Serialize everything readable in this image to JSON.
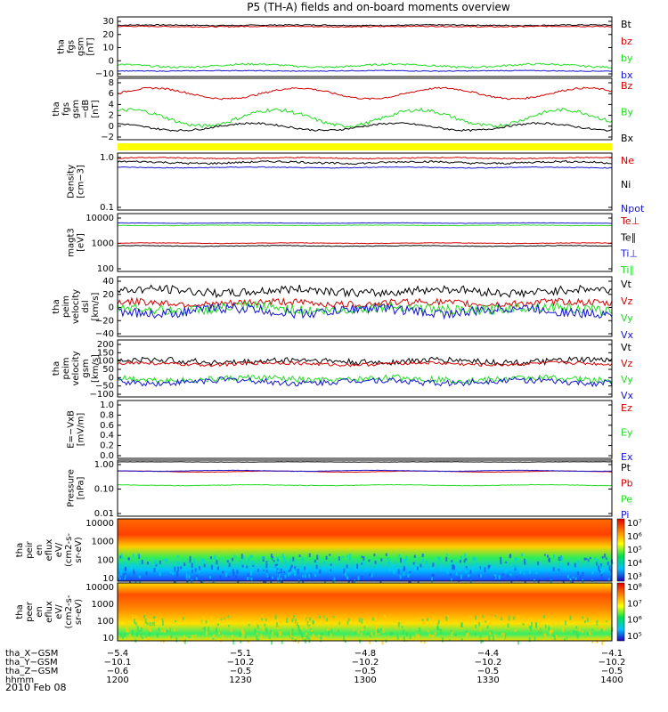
{
  "title": "P5 (TH-A) fields and on-board moments overview",
  "colors": {
    "black": "#000000",
    "red": "#d40000",
    "green": "#22dd22",
    "blue": "#1515d0",
    "yellow": "#ffff00"
  },
  "chart_data": [
    {
      "id": "p1",
      "type": "line",
      "ylabel": [
        "tha",
        "fgs",
        "gsm",
        "[nT]"
      ],
      "yticks": [
        "30",
        "20",
        "10",
        "0",
        "−10"
      ],
      "ylim": [
        -12,
        31
      ],
      "series": [
        {
          "name": "Bt",
          "color": "#000000",
          "level": 26,
          "noise": 0.4,
          "wave": 0.2
        },
        {
          "name": "bz",
          "color": "#d40000",
          "level": 25,
          "noise": 0.4,
          "wave": 0.2
        },
        {
          "name": "by",
          "color": "#22dd22",
          "level": -5,
          "noise": 0.7,
          "wave": 1.2
        },
        {
          "name": "bx",
          "color": "#1515d0",
          "level": -9,
          "noise": 0.3,
          "wave": 0.2
        }
      ]
    },
    {
      "id": "p2",
      "type": "line",
      "ylabel": [
        "tha",
        "fgs",
        "gsm",
        "−dB",
        "[nT]"
      ],
      "yticks": [
        "8",
        "6",
        "4",
        "2",
        "0",
        "−2"
      ],
      "ylim": [
        -3,
        10
      ],
      "series": [
        {
          "name": "Bz",
          "color": "#d40000",
          "level": 7,
          "noise": 0.2,
          "wave": 1.2
        },
        {
          "name": "By",
          "color": "#22dd22",
          "level": 1.5,
          "noise": 0.4,
          "wave": 1.8
        },
        {
          "name": "Bx",
          "color": "#000000",
          "level": -0.5,
          "noise": 0.2,
          "wave": 0.8
        }
      ]
    },
    {
      "id": "p3",
      "type": "line",
      "ylabel": [
        "Density",
        "[cm−3]"
      ],
      "yticks": [
        "1.0",
        "0.1"
      ],
      "ylim": [
        0.1,
        1.0
      ],
      "yscale": "log",
      "series": [
        {
          "name": "Ne",
          "color": "#d40000",
          "level": 0.87,
          "noise": 0.02,
          "wave": 0.02
        },
        {
          "name": "Ni",
          "color": "#000000",
          "level": 0.72,
          "noise": 0.03,
          "wave": 0.03
        },
        {
          "name": "Npot",
          "color": "#1515d0",
          "level": 0.58,
          "noise": 0.01,
          "wave": 0.01
        }
      ]
    },
    {
      "id": "p4",
      "type": "line",
      "ylabel": [
        "magt3",
        "[eV]"
      ],
      "yticks": [
        "10000",
        "1000",
        "100"
      ],
      "ylim": [
        100,
        10000
      ],
      "yscale": "log",
      "series": [
        {
          "name": "Te⊥",
          "color": "#d40000",
          "level": 950,
          "noise": 20,
          "wave": 20
        },
        {
          "name": "Te∥",
          "color": "#000000",
          "level": 750,
          "noise": 20,
          "wave": 20
        },
        {
          "name": "Ti⊥",
          "color": "#1515d0",
          "level": 5200,
          "noise": 80,
          "wave": 80
        },
        {
          "name": "Ti∥",
          "color": "#22dd22",
          "level": 4300,
          "noise": 80,
          "wave": 80
        }
      ]
    },
    {
      "id": "p5",
      "type": "line",
      "ylabel": [
        "tha",
        "peim",
        "velocity",
        "dsl",
        "[km/s]"
      ],
      "yticks": [
        "40",
        "20",
        "0",
        "−20",
        "−40"
      ],
      "ylim": [
        -40,
        40
      ],
      "series": [
        {
          "name": "Vt",
          "color": "#000000",
          "level": 22,
          "noise": 6,
          "wave": 3
        },
        {
          "name": "Vz",
          "color": "#d40000",
          "level": 5,
          "noise": 5,
          "wave": 2
        },
        {
          "name": "Vy",
          "color": "#22dd22",
          "level": -3,
          "noise": 7,
          "wave": 3
        },
        {
          "name": "Vx",
          "color": "#1515d0",
          "level": -6,
          "noise": 7,
          "wave": 4
        }
      ]
    },
    {
      "id": "p6",
      "type": "line",
      "ylabel": [
        "tha",
        "peim",
        "velocity",
        "gsm",
        "[km/s]"
      ],
      "yticks": [
        "200",
        "150",
        "100",
        "50",
        "0",
        "−50",
        "−100"
      ],
      "ylim": [
        -110,
        205
      ],
      "series": [
        {
          "name": "Vt",
          "color": "#000000",
          "level": 90,
          "noise": 18,
          "wave": 8
        },
        {
          "name": "Vz",
          "color": "#d40000",
          "level": 75,
          "noise": 10,
          "wave": 6
        },
        {
          "name": "Vy",
          "color": "#22dd22",
          "level": -15,
          "noise": 18,
          "wave": 8
        },
        {
          "name": "Vx",
          "color": "#1515d0",
          "level": -30,
          "noise": 18,
          "wave": 10
        }
      ]
    },
    {
      "id": "p7",
      "type": "line",
      "ylabel": [
        "E=−VxB",
        "[mV/m]"
      ],
      "yticks": [
        "1.0",
        "0.8",
        "0.6",
        "0.4",
        "0.2",
        "0.0"
      ],
      "ylim": [
        0,
        1
      ],
      "series": [
        {
          "name": "Ez",
          "color": "#d40000"
        },
        {
          "name": "Ey",
          "color": "#22dd22"
        },
        {
          "name": "Ex",
          "color": "#1515d0"
        }
      ]
    },
    {
      "id": "p8",
      "type": "line",
      "ylabel": [
        "Pressure",
        "[nPa]"
      ],
      "yticks": [
        "1.00",
        "0.10",
        "0.01"
      ],
      "ylim": [
        0.01,
        1.0
      ],
      "yscale": "log",
      "series": [
        {
          "name": "Pt",
          "color": "#000000",
          "level": 1.0,
          "noise": 0.01,
          "wave": 0.01
        },
        {
          "name": "Pb",
          "color": "#d40000",
          "level": 0.43,
          "noise": 0.005,
          "wave": 0.02
        },
        {
          "name": "Pe",
          "color": "#22dd22",
          "level": 0.13,
          "noise": 0.003,
          "wave": 0.005
        },
        {
          "name": "Pi",
          "color": "#1515d0",
          "level": 0.46,
          "noise": 0.006,
          "wave": 0.02
        }
      ]
    },
    {
      "id": "p9",
      "type": "heatmap",
      "ylabel": [
        "tha",
        "peir",
        "en",
        "eflux",
        "eV/",
        "(cm2-s-",
        "sr-eV)"
      ],
      "yticks": [
        "10000",
        "1000",
        "100",
        "10"
      ],
      "colorbar": [
        "10⁷",
        "10⁶",
        "10⁵",
        "10⁴",
        "10³"
      ]
    },
    {
      "id": "p10",
      "type": "heatmap",
      "ylabel": [
        "tha",
        "peer",
        "en",
        "eflux",
        "eV/",
        "(cm2-s-",
        "sr-eV)"
      ],
      "yticks": [
        "10000",
        "1000",
        "100",
        "10"
      ],
      "colorbar": [
        "10⁸",
        "10⁷",
        "10⁶",
        "10⁵"
      ]
    }
  ],
  "xaxis": {
    "ticks": [
      {
        "x": "−5.4",
        "y": "−10.1",
        "z": "−0.6",
        "t": "1200"
      },
      {
        "x": "−5.1",
        "y": "−10.2",
        "z": "−0.5",
        "t": "1230"
      },
      {
        "x": "−4.8",
        "y": "−10.2",
        "z": "−0.5",
        "t": "1300"
      },
      {
        "x": "−4.4",
        "y": "−10.2",
        "z": "−0.5",
        "t": "1330"
      },
      {
        "x": "−4.1",
        "y": "−10.2",
        "z": "−0.5",
        "t": "1400"
      }
    ],
    "row_labels": [
      "tha_X−GSM",
      "tha_Y−GSM",
      "tha_Z−GSM",
      "hhmm"
    ],
    "date": "2010 Feb 08"
  }
}
